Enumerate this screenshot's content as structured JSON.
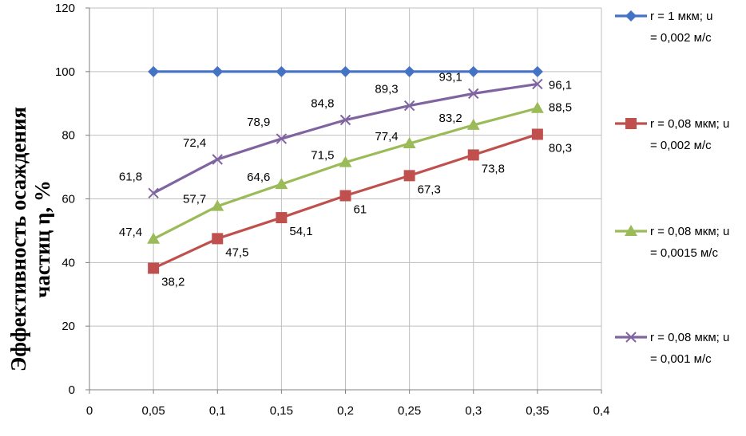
{
  "chart_data": {
    "type": "line",
    "title": "",
    "xlabel": "",
    "ylabel_line1": "Эффективность осаждения",
    "ylabel_line2": "частиц η, %",
    "xlim": [
      0,
      0.4
    ],
    "ylim": [
      0,
      120
    ],
    "x_ticks": [
      "0",
      "0,05",
      "0,1",
      "0,15",
      "0,2",
      "0,25",
      "0,3",
      "0,35",
      "0,4"
    ],
    "y_ticks": [
      "0",
      "20",
      "40",
      "60",
      "80",
      "100",
      "120"
    ],
    "grid": true,
    "legend_position": "right",
    "series": [
      {
        "name_line1": "r = 1 мкм;      u",
        "name_line2": "= 0,002 м/с",
        "color": "#4472c4",
        "marker": "diamond",
        "x": [
          0.05,
          0.1,
          0.15,
          0.2,
          0.25,
          0.3,
          0.35
        ],
        "values": [
          100,
          100,
          100,
          100,
          100,
          100,
          100
        ],
        "labels": []
      },
      {
        "name_line1": "r = 0,08 мкм; u",
        "name_line2": "= 0,002 м/с",
        "color": "#c0504d",
        "marker": "square",
        "x": [
          0.05,
          0.1,
          0.15,
          0.2,
          0.25,
          0.3,
          0.35
        ],
        "values": [
          38.2,
          47.5,
          54.1,
          61,
          67.3,
          73.8,
          80.3
        ],
        "labels": [
          "38,2",
          "47,5",
          "54,1",
          "61",
          "67,3",
          "73,8",
          "80,3"
        ]
      },
      {
        "name_line1": "r = 0,08 мкм; u",
        "name_line2": "= 0,0015 м/с",
        "color": "#9bbb59",
        "marker": "triangle",
        "x": [
          0.05,
          0.1,
          0.15,
          0.2,
          0.25,
          0.3,
          0.35
        ],
        "values": [
          47.4,
          57.7,
          64.6,
          71.5,
          77.4,
          83.2,
          88.5
        ],
        "labels": [
          "47,4",
          "57,7",
          "64,6",
          "71,5",
          "77,4",
          "83,2",
          "88,5"
        ]
      },
      {
        "name_line1": "r = 0,08 мкм; u",
        "name_line2": "= 0,001 м/с",
        "color": "#8064a2",
        "marker": "x",
        "x": [
          0.05,
          0.1,
          0.15,
          0.2,
          0.25,
          0.3,
          0.35
        ],
        "values": [
          61.8,
          72.4,
          78.9,
          84.8,
          89.3,
          93.1,
          96.1
        ],
        "labels": [
          "61,8",
          "72,4",
          "78,9",
          "84,8",
          "89,3",
          "93,1",
          "96,1"
        ]
      }
    ]
  }
}
